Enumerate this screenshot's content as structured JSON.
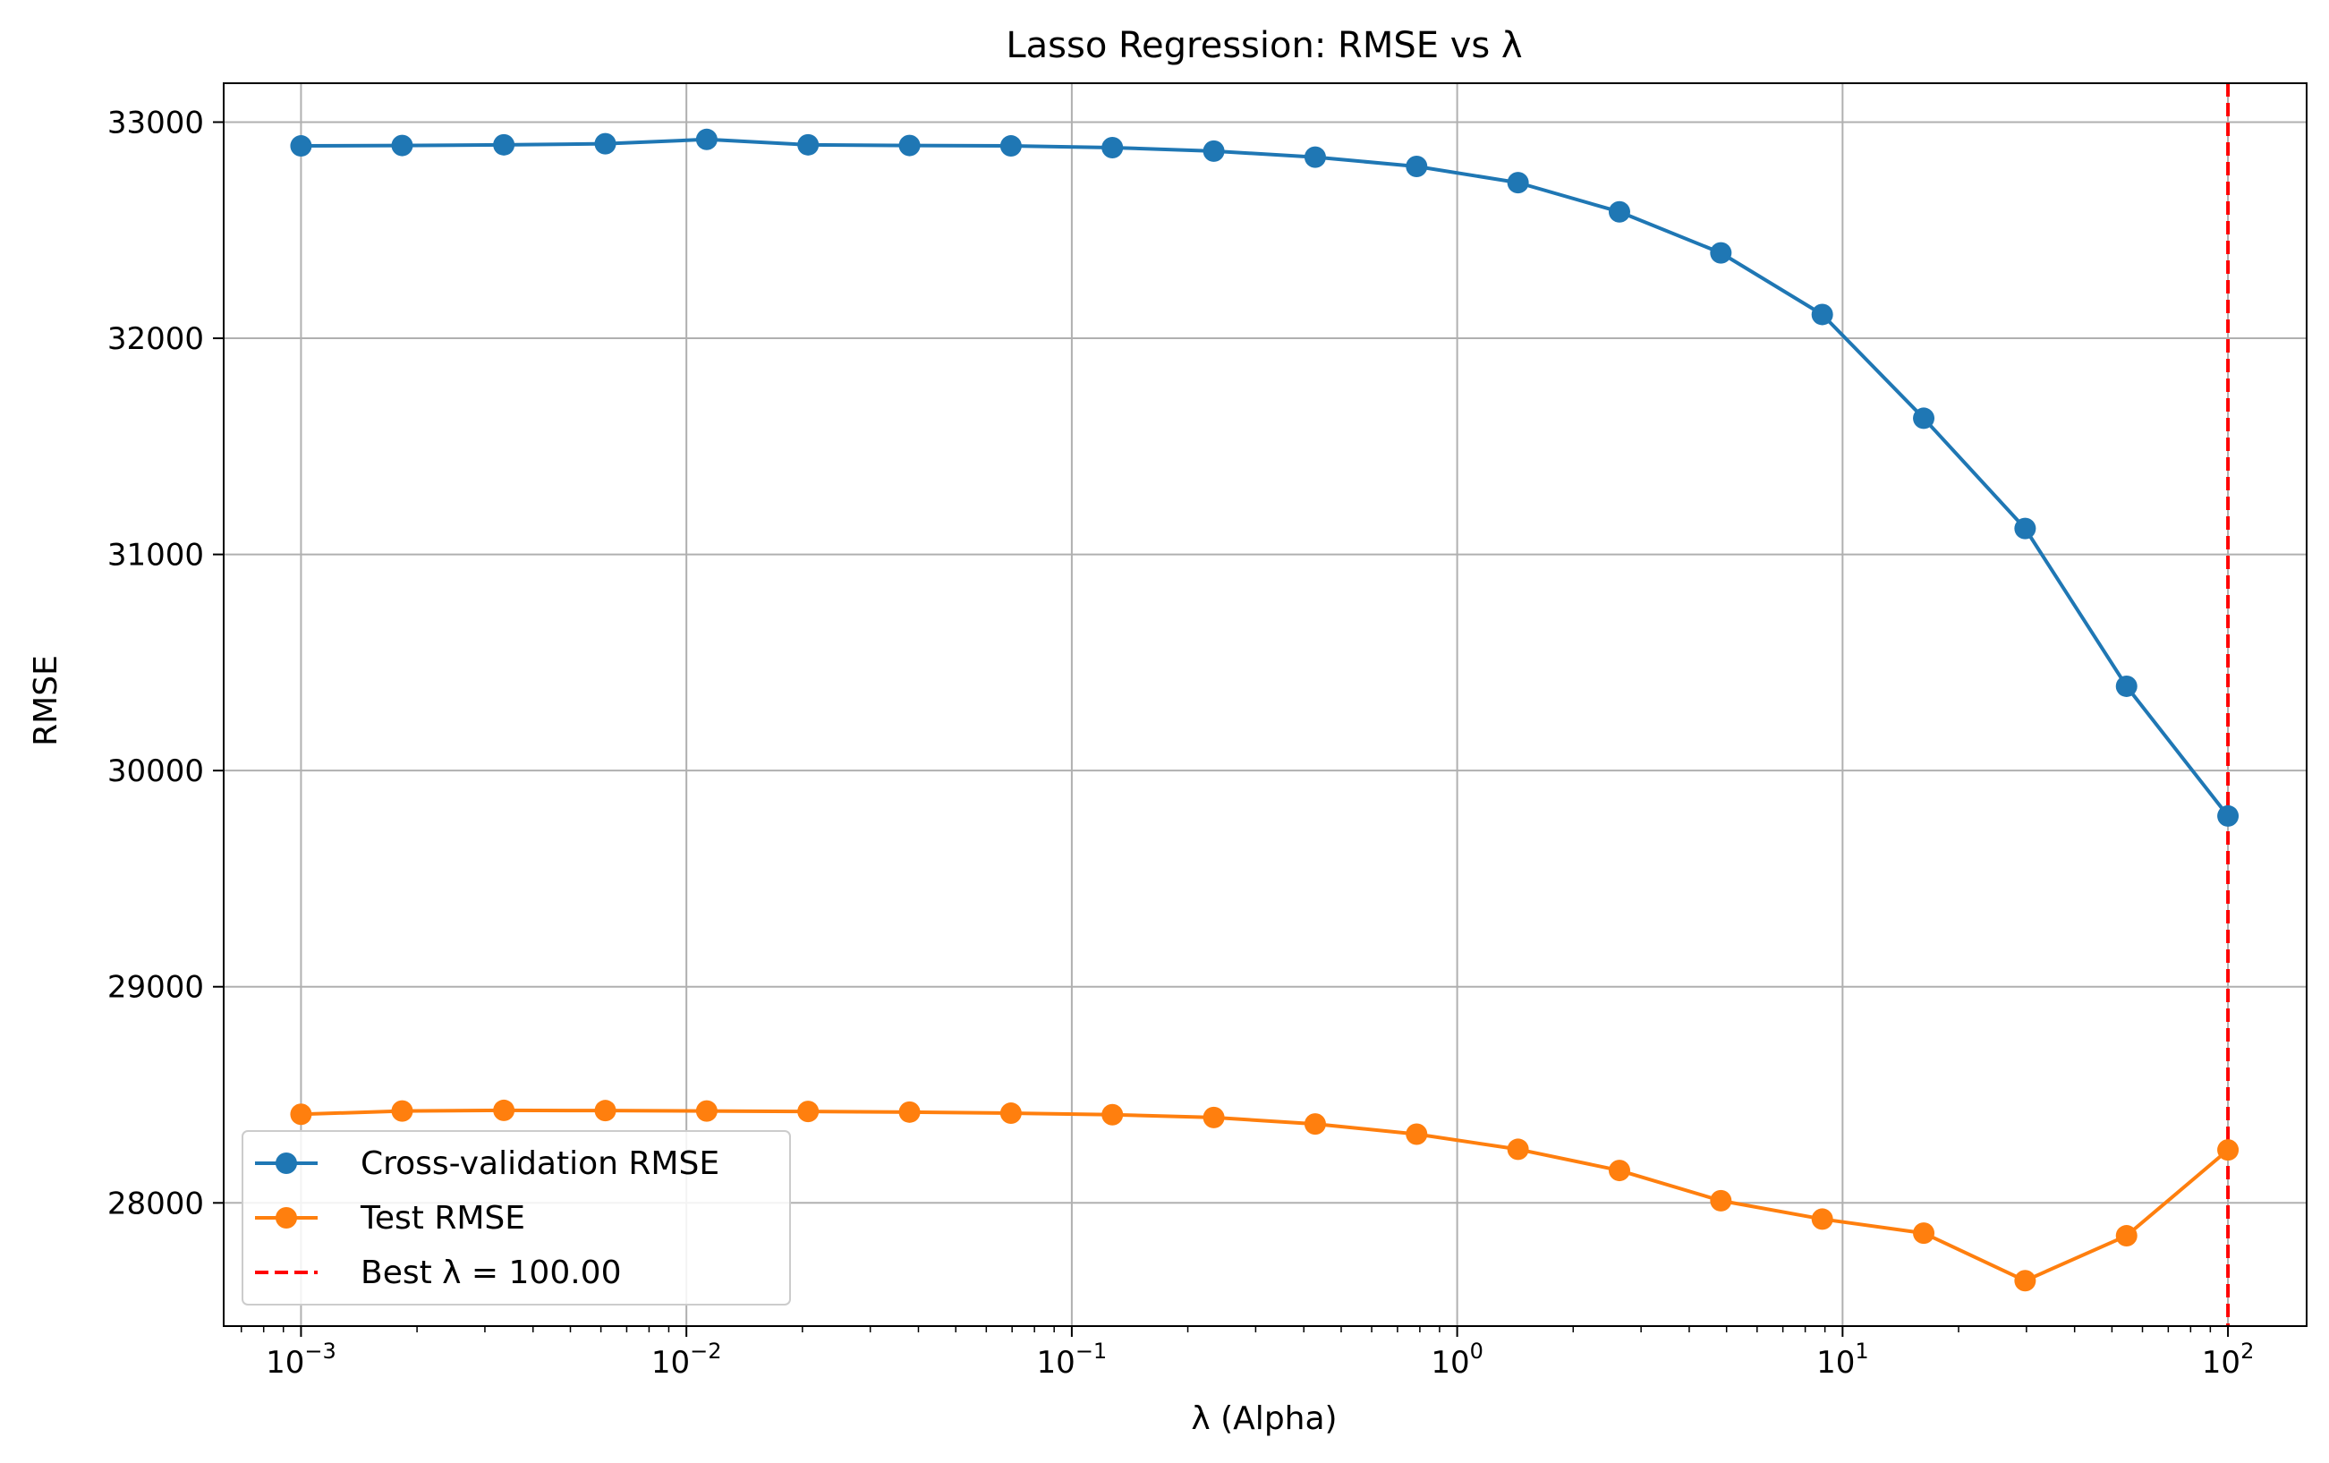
{
  "chart_data": {
    "type": "line",
    "title": "Lasso Regression: RMSE vs λ",
    "xlabel": "λ (Alpha)",
    "ylabel": "RMSE",
    "xscale": "log",
    "xlim": [
      0.00063,
      160
    ],
    "ylim": [
      27430,
      33180
    ],
    "grid": true,
    "legend_position": "lower-left",
    "x": [
      0.001,
      0.00183,
      0.00336,
      0.00616,
      0.01129,
      0.02069,
      0.03793,
      0.06952,
      0.12743,
      0.23357,
      0.42813,
      0.78476,
      1.43845,
      2.63665,
      4.83293,
      8.85867,
      16.2378,
      29.7635,
      54.5559,
      100.0
    ],
    "series": [
      {
        "name": "Cross-validation RMSE",
        "color": "#1f77b4",
        "values": [
          32890,
          32892,
          32895,
          32900,
          32920,
          32895,
          32892,
          32890,
          32882,
          32866,
          32838,
          32795,
          32720,
          32585,
          32395,
          32110,
          31630,
          31120,
          30390,
          29790
        ]
      },
      {
        "name": "Test RMSE",
        "color": "#ff7f0e",
        "values": [
          28410,
          28425,
          28428,
          28427,
          28425,
          28423,
          28420,
          28415,
          28408,
          28395,
          28365,
          28318,
          28248,
          28150,
          28010,
          27925,
          27860,
          27640,
          27848,
          28245
        ]
      }
    ],
    "reference_line": {
      "label": "Best λ = 100.00",
      "x": 100.0,
      "color": "#ff0000",
      "style": "dashed"
    },
    "x_ticks": [
      {
        "value": 0.001,
        "base": "10",
        "exp": "−3"
      },
      {
        "value": 0.01,
        "base": "10",
        "exp": "−2"
      },
      {
        "value": 0.1,
        "base": "10",
        "exp": "−1"
      },
      {
        "value": 1,
        "base": "10",
        "exp": "0"
      },
      {
        "value": 10,
        "base": "10",
        "exp": "1"
      },
      {
        "value": 100,
        "base": "10",
        "exp": "2"
      }
    ],
    "y_ticks": [
      {
        "value": 28000,
        "label": "28000"
      },
      {
        "value": 29000,
        "label": "29000"
      },
      {
        "value": 30000,
        "label": "30000"
      },
      {
        "value": 31000,
        "label": "31000"
      },
      {
        "value": 32000,
        "label": "32000"
      },
      {
        "value": 33000,
        "label": "33000"
      }
    ]
  }
}
